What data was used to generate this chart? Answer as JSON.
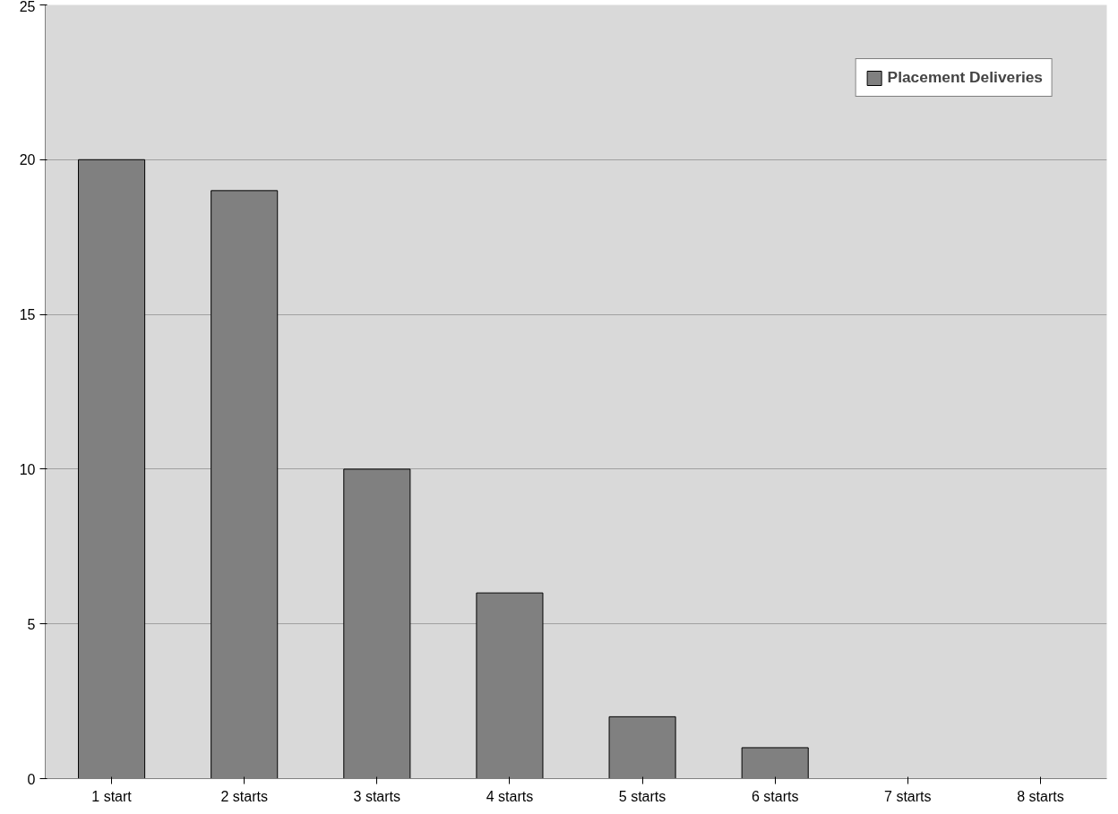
{
  "chart_data": {
    "type": "bar",
    "categories": [
      "1 start",
      "2 starts",
      "3 starts",
      "4 starts",
      "5 starts",
      "6 starts",
      "7 starts",
      "8 starts"
    ],
    "series": [
      {
        "name": "Placement Deliveries",
        "color": "#808080",
        "values": [
          20,
          19,
          10,
          6,
          2,
          1,
          0,
          0
        ]
      }
    ],
    "ylim": [
      0,
      25
    ],
    "yticks": [
      0,
      5,
      10,
      15,
      20,
      25
    ],
    "grid": "y",
    "legend": "top right"
  }
}
